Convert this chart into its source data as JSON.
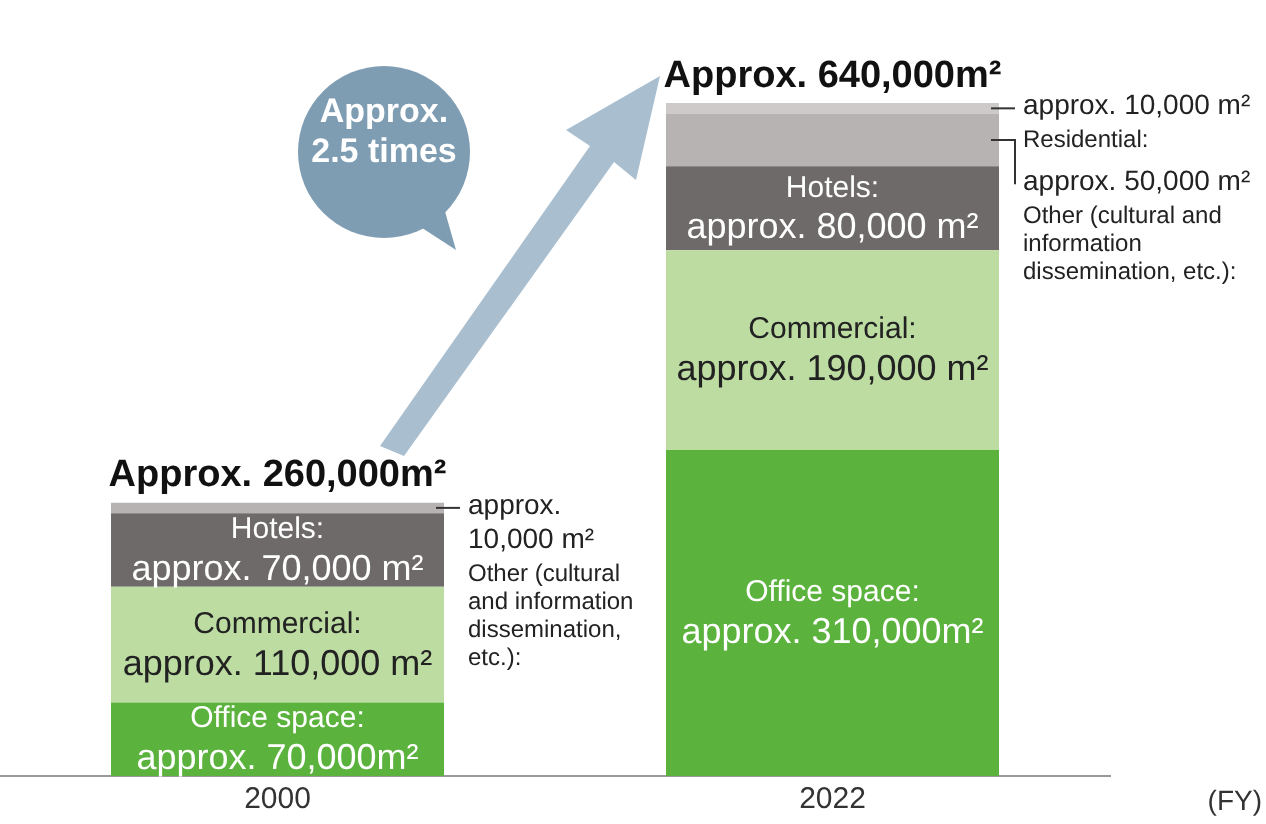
{
  "chart_data": {
    "type": "bar",
    "stacked": true,
    "categories": [
      "2000",
      "2022"
    ],
    "xlabel": "(FY)",
    "series": [
      {
        "name": "Office space:",
        "color": "#5bb33e",
        "values": [
          70000,
          310000
        ],
        "value_labels": [
          "approx. 70,000m²",
          "approx. 310,000m²"
        ]
      },
      {
        "name": "Commercial:",
        "color": "#bcdca2",
        "values": [
          110000,
          190000
        ],
        "value_labels": [
          "approx. 110,000 m²",
          "approx. 190,000 m²"
        ]
      },
      {
        "name": "Hotels:",
        "color": "#6e6a6a",
        "values": [
          70000,
          80000
        ],
        "value_labels": [
          "approx. 70,000 m²",
          "approx. 80,000 m²"
        ]
      },
      {
        "name": "Other (cultural and information dissemination, etc.):",
        "color": "#b8b3b3",
        "values": [
          10000,
          50000
        ],
        "value_labels": [
          "approx. 10,000 m²",
          "approx. 50,000 m²"
        ]
      },
      {
        "name": "Residential:",
        "color": "#cfcaca",
        "values": [
          0,
          10000
        ],
        "value_labels": [
          null,
          "approx. 10,000 m²"
        ]
      }
    ],
    "totals": [
      "Approx. 260,000m²",
      "Approx. 640,000m²"
    ],
    "annotations": [
      "Approx. 2.5 times"
    ],
    "grid": false,
    "legend": false
  }
}
